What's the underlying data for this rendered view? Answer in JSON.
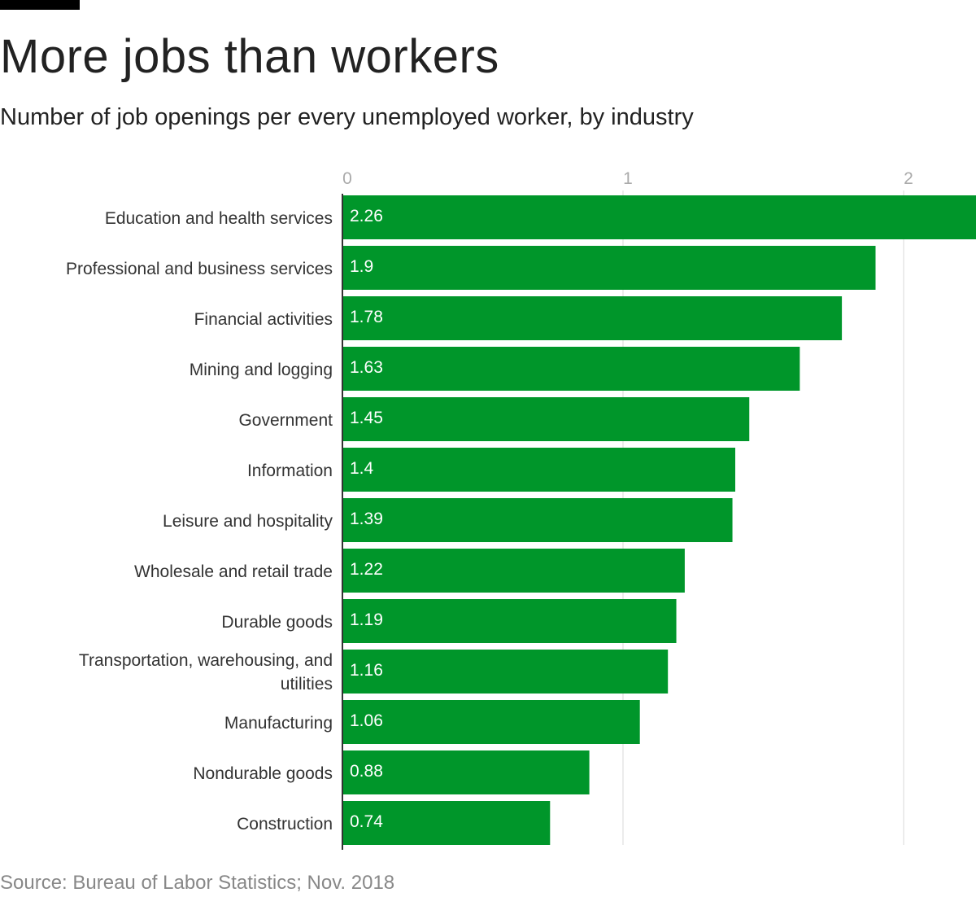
{
  "header": {
    "title": "More jobs than workers",
    "subtitle": "Number of job openings per every unemployed worker, by industry"
  },
  "footer": {
    "source": "Source: Bureau of Labor Statistics; Nov. 2018"
  },
  "colors": {
    "bar": "#00962a",
    "grid": "#e6e6e6",
    "axis": "#333333"
  },
  "chart_data": {
    "type": "bar",
    "orientation": "horizontal",
    "title": "More jobs than workers",
    "subtitle": "Number of job openings per every unemployed worker, by industry",
    "xlim": [
      0,
      2.26
    ],
    "xticks": [
      "0",
      "1",
      "2"
    ],
    "grid": true,
    "categories": [
      [
        "Education and health services"
      ],
      [
        "Professional and business services"
      ],
      [
        "Financial activities"
      ],
      [
        "Mining and logging"
      ],
      [
        "Government"
      ],
      [
        "Information"
      ],
      [
        "Leisure and hospitality"
      ],
      [
        "Wholesale and retail trade"
      ],
      [
        "Durable goods"
      ],
      [
        "Transportation, warehousing, and",
        "utilities"
      ],
      [
        "Manufacturing"
      ],
      [
        "Nondurable goods"
      ],
      [
        "Construction"
      ]
    ],
    "values": [
      2.26,
      1.9,
      1.78,
      1.63,
      1.45,
      1.4,
      1.39,
      1.22,
      1.19,
      1.16,
      1.06,
      0.88,
      0.74
    ],
    "data_labels": [
      "2.26",
      "1.9",
      "1.78",
      "1.63",
      "1.45",
      "1.4",
      "1.39",
      "1.22",
      "1.19",
      "1.16",
      "1.06",
      "0.88",
      "0.74"
    ]
  }
}
